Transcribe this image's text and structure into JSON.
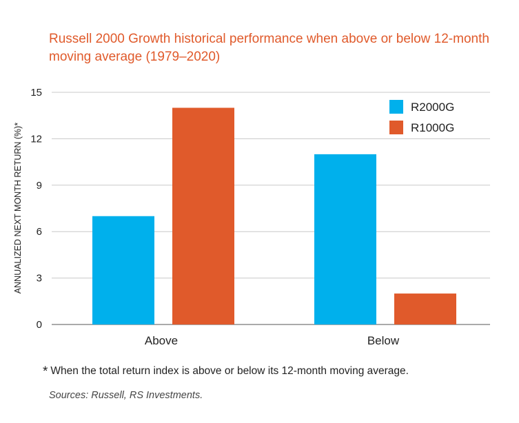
{
  "title": "Russell 2000 Growth historical performance when above or below 12-month moving average (1979–2020)",
  "footnote": {
    "marker": "*",
    "text": "When the total return index is above or below its 12-month moving average."
  },
  "sources": "Sources: Russell, RS Investments.",
  "colors": {
    "R2000G": "#00b0ec",
    "R1000G": "#e05a2b",
    "title": "#e05a2b"
  },
  "chart_data": {
    "type": "bar",
    "title": "Russell 2000 Growth historical performance when above or below 12-month moving average (1979–2020)",
    "xlabel": "",
    "ylabel": "ANNUALIZED NEXT MONTH RETURN (%)*",
    "ylim": [
      0,
      15
    ],
    "yticks": [
      0,
      3,
      6,
      9,
      12,
      15
    ],
    "categories": [
      "Above",
      "Below"
    ],
    "series": [
      {
        "name": "R2000G",
        "color": "#00b0ec",
        "values": [
          7,
          11
        ]
      },
      {
        "name": "R1000G",
        "color": "#e05a2b",
        "values": [
          14,
          2
        ]
      }
    ],
    "grid": true,
    "legend": "top-right"
  }
}
